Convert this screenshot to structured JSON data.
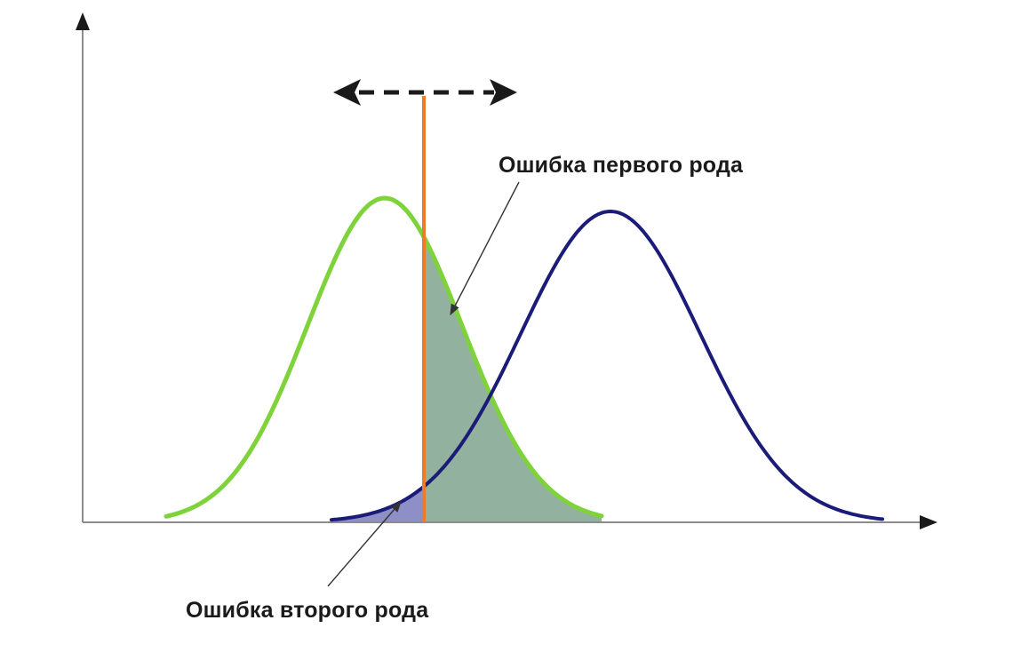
{
  "labels": {
    "type1_error": "Ошибка первого рода",
    "type2_error": "Ошибка второго рода"
  },
  "colors": {
    "axis": "#8c8c8c",
    "axis_arrow": "#1a1a1a",
    "null_curve": "#7ed23a",
    "alt_curve": "#1b1b7a",
    "threshold": "#ee7a2a",
    "type1_fill": "#93b19f",
    "type2_fill": "#8d8fc6",
    "pointer_line": "#333333",
    "shift_arrow": "#1a1a1a"
  },
  "icons": {
    "shift_arrow": "double-headed-dashed-arrow"
  }
}
